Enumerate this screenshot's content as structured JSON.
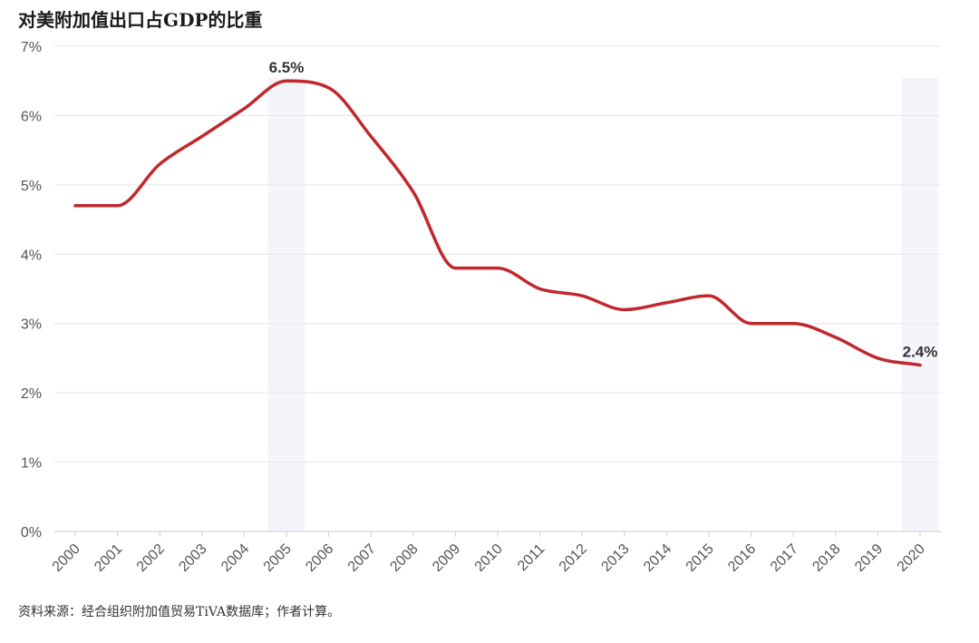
{
  "title": "对美附加值出口占GDP的比重",
  "source": "资料来源：经合组织附加值贸易TiVA数据库；作者计算。",
  "colors": {
    "line": "#c0282d",
    "grid": "#e6e6e6",
    "highlight": "#f4f5fb"
  },
  "chart_data": {
    "type": "line",
    "title": "对美附加值出口占GDP的比重",
    "xlabel": "",
    "ylabel": "",
    "x": [
      "2000",
      "2001",
      "2002",
      "2003",
      "2004",
      "2005",
      "2006",
      "2007",
      "2008",
      "2009",
      "2010",
      "2011",
      "2012",
      "2013",
      "2014",
      "2015",
      "2016",
      "2017",
      "2018",
      "2019",
      "2020"
    ],
    "series": [
      {
        "values": [
          4.7,
          4.7,
          5.3,
          5.7,
          6.1,
          6.5,
          6.4,
          5.7,
          4.9,
          3.8,
          3.8,
          3.5,
          3.4,
          3.2,
          3.3,
          3.4,
          3.0,
          3.0,
          2.8,
          2.5,
          2.4
        ]
      }
    ],
    "ylim": [
      0,
      7
    ],
    "yticks": [
      "0%",
      "1%",
      "2%",
      "3%",
      "4%",
      "5%",
      "6%",
      "7%"
    ],
    "grid": true,
    "annotations": [
      {
        "x": "2005",
        "label": "6.5%"
      },
      {
        "x": "2020",
        "label": "2.4%"
      }
    ],
    "highlighted_categories": [
      "2005",
      "2020"
    ]
  }
}
